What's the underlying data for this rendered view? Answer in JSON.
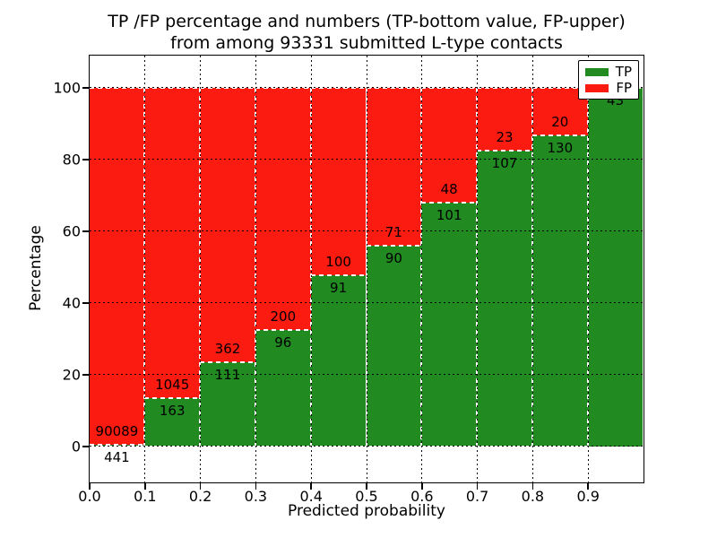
{
  "figure": {
    "title_line1": "TP /FP percentage and numbers (TP-bottom value, FP-upper)",
    "title_line2": "from among 93331 submitted L-type contacts"
  },
  "axes": {
    "xlabel": "Predicted probability",
    "ylabel": "Percentage",
    "xtick_labels": [
      "0.0",
      "0.1",
      "0.2",
      "0.3",
      "0.4",
      "0.5",
      "0.6",
      "0.7",
      "0.8",
      "0.9"
    ],
    "ytick_labels": [
      "0",
      "20",
      "40",
      "60",
      "80",
      "100"
    ],
    "ytick_values": [
      0,
      20,
      40,
      60,
      80,
      100
    ],
    "xlim": [
      0.0,
      1.0
    ],
    "ylim": [
      -10,
      109
    ],
    "grid": true
  },
  "legend": {
    "position": "upper-right",
    "items": [
      {
        "label": "TP",
        "color": "#218a21"
      },
      {
        "label": "FP",
        "color": "#fb1b10"
      }
    ]
  },
  "colors": {
    "tp_green": "#218a21",
    "fp_red": "#fb1b10",
    "background": "#ffffff",
    "grid": "#000000"
  },
  "chart_data": {
    "type": "bar",
    "stacked": true,
    "title": "TP /FP percentage and numbers (TP-bottom value, FP-upper) from among 93331 submitted L-type contacts",
    "xlabel": "Predicted probability",
    "ylabel": "Percentage",
    "total_contacts": 93331,
    "bin_width": 0.1,
    "bin_left_edges": [
      0.0,
      0.1,
      0.2,
      0.3,
      0.4,
      0.5,
      0.6,
      0.7,
      0.8,
      0.9
    ],
    "series": [
      {
        "name": "TP",
        "color": "#218a21",
        "values": [
          441,
          163,
          111,
          96,
          91,
          90,
          101,
          107,
          130,
          43
        ]
      },
      {
        "name": "FP",
        "color": "#fb1b10",
        "values": [
          90089,
          1045,
          362,
          200,
          100,
          71,
          48,
          23,
          20,
          0
        ]
      }
    ],
    "tp_percent": [
      0.49,
      13.49,
      23.47,
      32.43,
      47.64,
      55.9,
      67.79,
      82.31,
      86.67,
      100.0
    ]
  }
}
